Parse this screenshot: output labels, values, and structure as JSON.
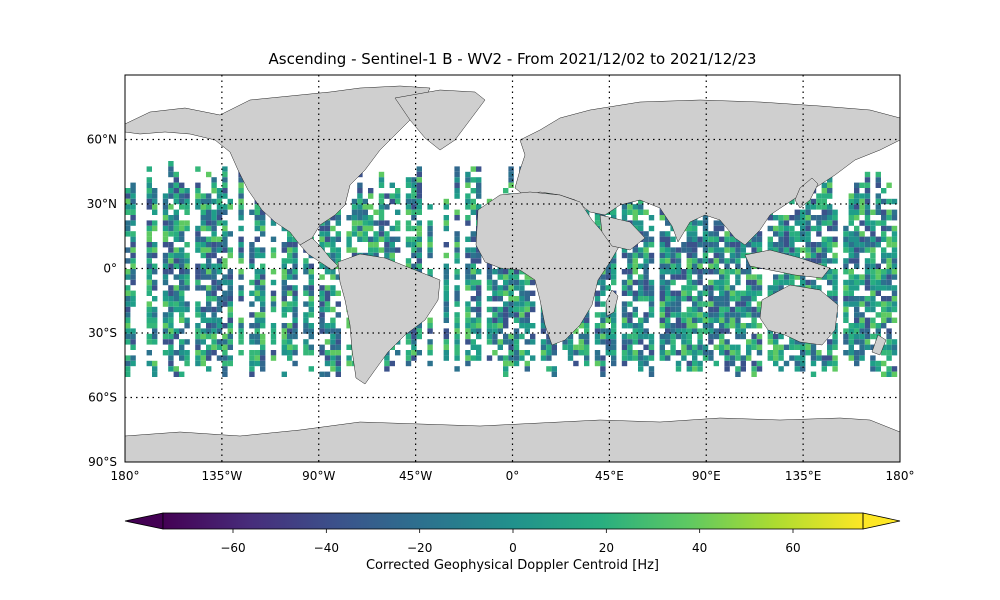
{
  "title": "Ascending - Sentinel-1 B - WV2 - From 2021/12/02 to 2021/12/23",
  "map": {
    "projection": "PlateCarree",
    "lon_range": [
      -180,
      180
    ],
    "lat_range": [
      -90,
      90
    ],
    "gridlines": "dotted",
    "land_color": "#cfcfcf",
    "swath_lat_range": [
      -50,
      50
    ],
    "lon_ticks": [
      {
        "value": -180,
        "label": "180°"
      },
      {
        "value": -135,
        "label": "135°W"
      },
      {
        "value": -90,
        "label": "90°W"
      },
      {
        "value": -45,
        "label": "45°W"
      },
      {
        "value": 0,
        "label": "0°"
      },
      {
        "value": 45,
        "label": "45°E"
      },
      {
        "value": 90,
        "label": "90°E"
      },
      {
        "value": 135,
        "label": "135°E"
      },
      {
        "value": 180,
        "label": "180°"
      }
    ],
    "lat_ticks": [
      {
        "value": 60,
        "label": "60°N"
      },
      {
        "value": 30,
        "label": "30°N"
      },
      {
        "value": 0,
        "label": "0°"
      },
      {
        "value": -30,
        "label": "30°S"
      },
      {
        "value": -60,
        "label": "60°S"
      },
      {
        "value": -90,
        "label": "90°S"
      }
    ]
  },
  "colorbar": {
    "colormap": "viridis",
    "range": [
      -75,
      75
    ],
    "extend": "both",
    "ticks": [
      {
        "value": -60,
        "label": "−60"
      },
      {
        "value": -40,
        "label": "−40"
      },
      {
        "value": -20,
        "label": "−20"
      },
      {
        "value": 0,
        "label": "0"
      },
      {
        "value": 20,
        "label": "20"
      },
      {
        "value": 40,
        "label": "40"
      },
      {
        "value": 60,
        "label": "60"
      }
    ],
    "label": "Corrected Geophysical Doppler Centroid [Hz]"
  }
}
